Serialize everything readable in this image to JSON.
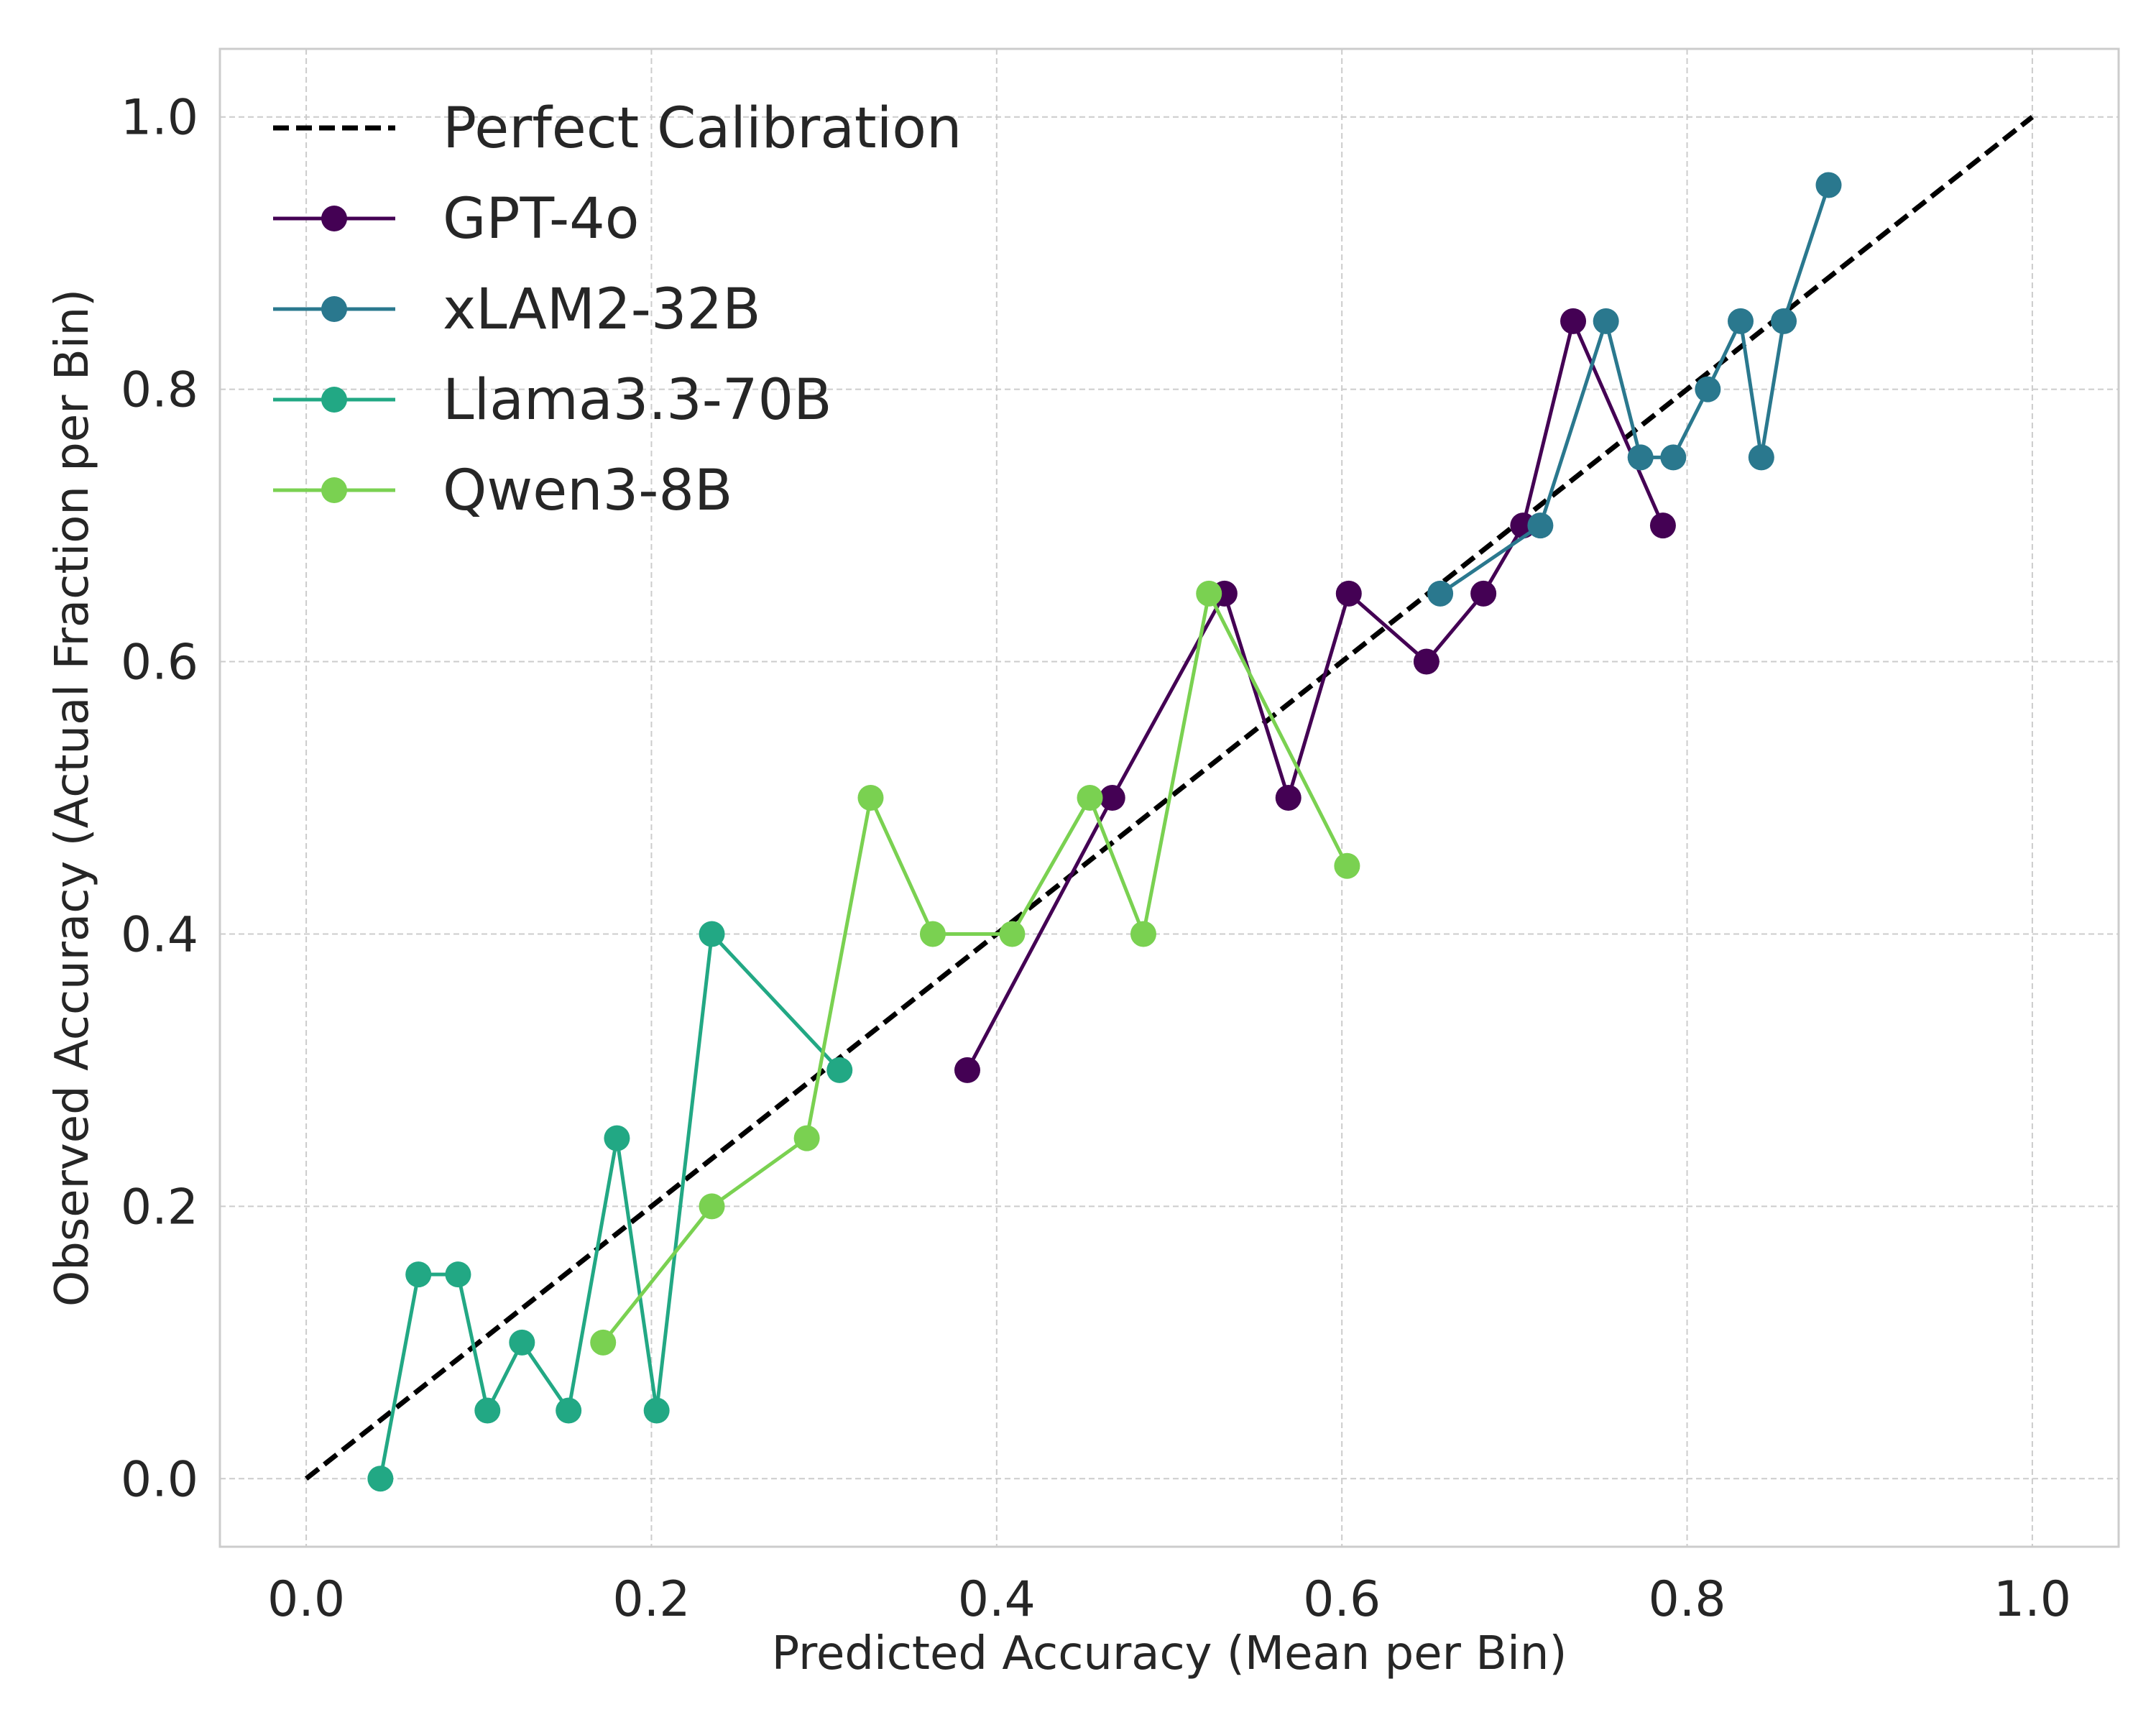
{
  "chart_data": {
    "type": "line",
    "title": "",
    "xlabel": "Predicted Accuracy (Mean per Bin)",
    "ylabel": "Observed Accuracy (Actual Fraction per Bin)",
    "xlim": [
      -0.05,
      1.05
    ],
    "ylim": [
      -0.05,
      1.05
    ],
    "x_ticks": [
      "0.0",
      "0.2",
      "0.4",
      "0.6",
      "0.8",
      "1.0"
    ],
    "y_ticks": [
      "0.0",
      "0.2",
      "0.4",
      "0.6",
      "0.8",
      "1.0"
    ],
    "grid": true,
    "legend_position": "top-left",
    "reference_line": {
      "name": "Perfect Calibration",
      "x": [
        0,
        1
      ],
      "y": [
        0,
        1
      ],
      "color": "#000000",
      "style": "dashed"
    },
    "series": [
      {
        "name": "GPT-4o",
        "color": "#440154",
        "x": [
          0.383,
          0.467,
          0.532,
          0.569,
          0.604,
          0.649,
          0.682,
          0.705,
          0.734,
          0.786
        ],
        "y": [
          0.3,
          0.5,
          0.65,
          0.5,
          0.65,
          0.6,
          0.65,
          0.7,
          0.85,
          0.7
        ]
      },
      {
        "name": "xLAM2-32B",
        "color": "#2a788e",
        "x": [
          0.657,
          0.715,
          0.753,
          0.773,
          0.792,
          0.812,
          0.831,
          0.843,
          0.856,
          0.882
        ],
        "y": [
          0.65,
          0.7,
          0.85,
          0.75,
          0.75,
          0.8,
          0.85,
          0.75,
          0.85,
          0.95
        ]
      },
      {
        "name": "Llama3.3-70B",
        "color": "#22a884",
        "x": [
          0.043,
          0.065,
          0.088,
          0.105,
          0.125,
          0.152,
          0.18,
          0.203,
          0.235,
          0.309
        ],
        "y": [
          0.0,
          0.15,
          0.15,
          0.05,
          0.1,
          0.05,
          0.25,
          0.05,
          0.4,
          0.3
        ]
      },
      {
        "name": "Qwen3-8B",
        "color": "#7ad151",
        "x": [
          0.172,
          0.235,
          0.29,
          0.327,
          0.363,
          0.409,
          0.454,
          0.485,
          0.523,
          0.603
        ],
        "y": [
          0.1,
          0.2,
          0.25,
          0.5,
          0.4,
          0.4,
          0.5,
          0.4,
          0.65,
          0.45
        ]
      }
    ]
  }
}
